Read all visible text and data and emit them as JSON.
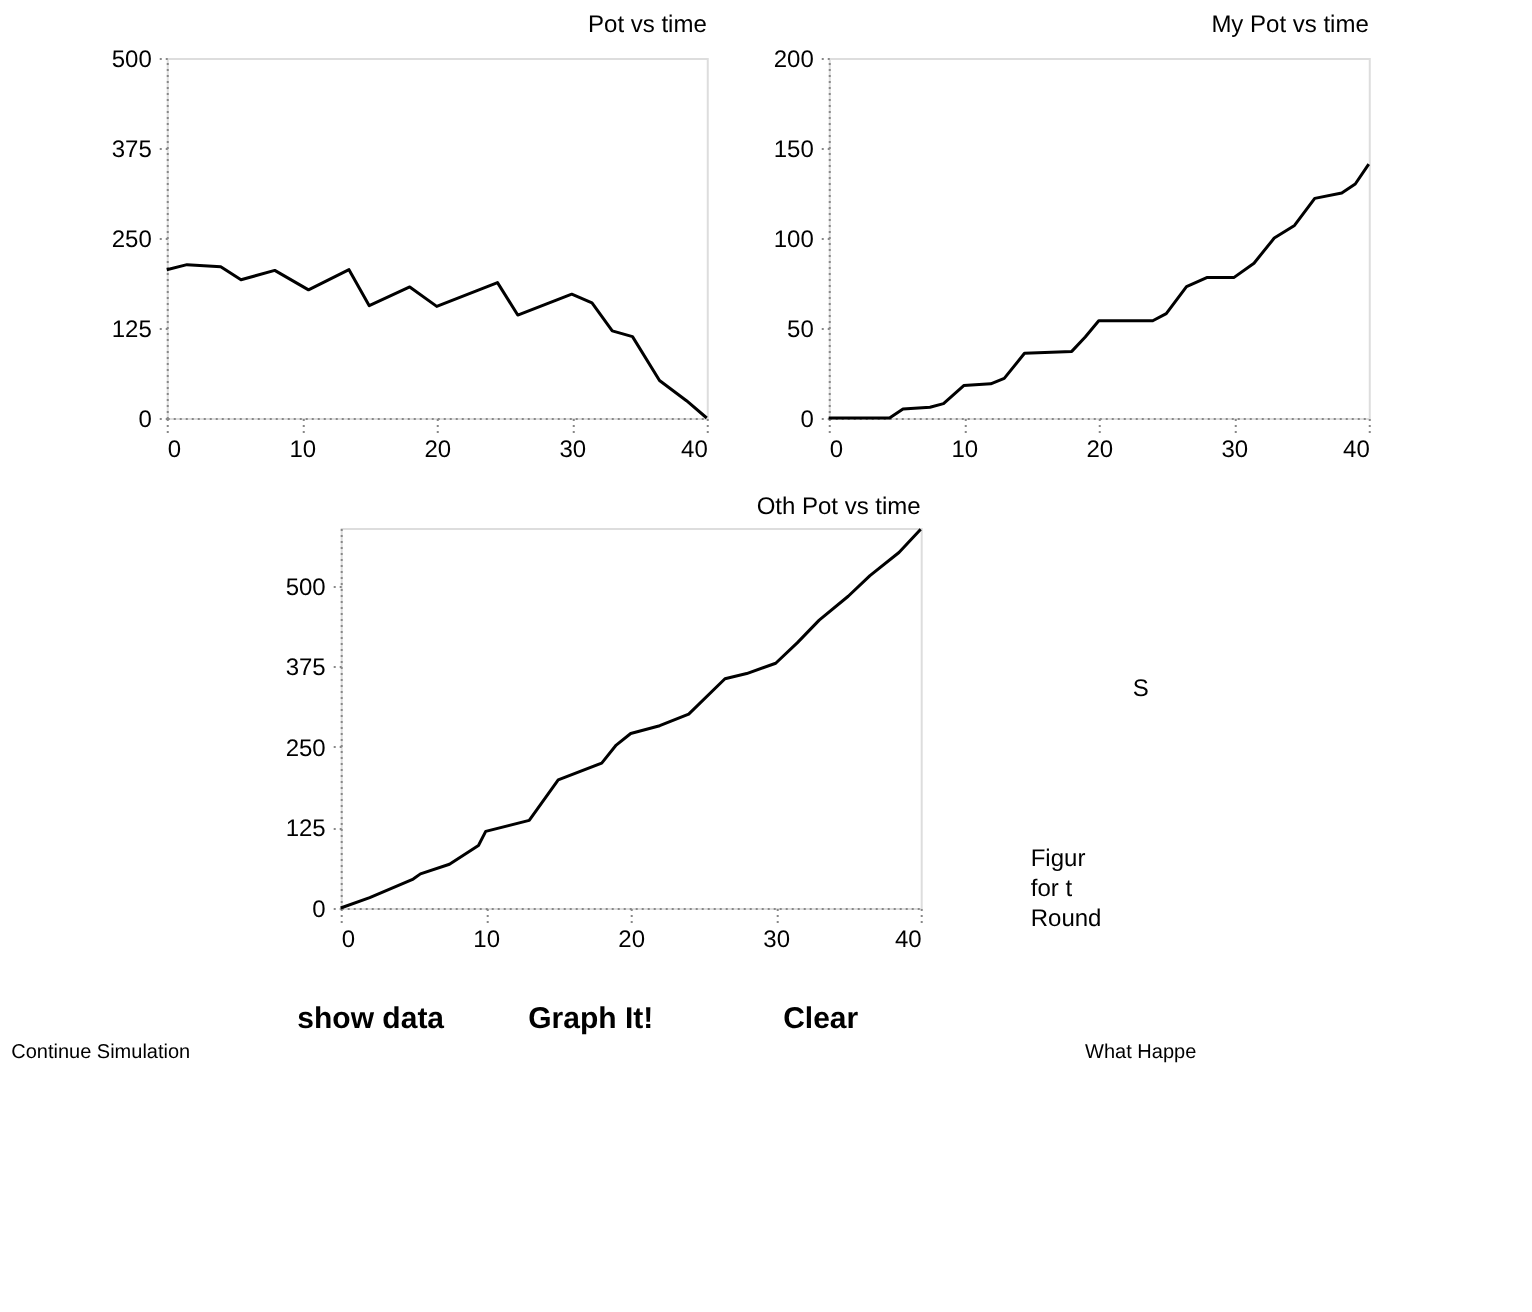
{
  "chart_data": [
    {
      "type": "line",
      "title": "Pot vs time",
      "x": [
        0,
        1.5,
        4,
        5.5,
        8,
        10.5,
        13.5,
        15,
        18,
        20,
        24.5,
        26,
        30,
        31.5,
        33,
        34.5,
        36.5,
        38.5,
        40
      ],
      "values": [
        206,
        213,
        210,
        192,
        205,
        178,
        206,
        156,
        182,
        155,
        188,
        143,
        172,
        160,
        121,
        113,
        52,
        24,
        0
      ],
      "color": "#000000",
      "xlim": [
        0,
        40
      ],
      "xticks": [
        0,
        10,
        20,
        30,
        40
      ],
      "ylim": [
        0,
        500
      ],
      "yticks": [
        0,
        125,
        250,
        375,
        500
      ],
      "grid": false,
      "line_style": "solid"
    },
    {
      "type": "line",
      "title": "My Pot vs time",
      "x": [
        0,
        4.5,
        5.5,
        7.5,
        8.5,
        10,
        12,
        13,
        14.5,
        18,
        19,
        20,
        24,
        25,
        26.5,
        28,
        30,
        31.5,
        33,
        34.5,
        36,
        38,
        39,
        40
      ],
      "values": [
        0,
        0,
        5,
        6,
        8,
        18,
        19,
        22,
        36,
        37,
        45,
        54,
        54,
        58,
        73,
        78,
        78,
        86,
        100,
        107,
        122,
        125,
        130,
        141
      ],
      "color": "#000000",
      "xlim": [
        0,
        40
      ],
      "xticks": [
        0,
        10,
        20,
        30,
        40
      ],
      "ylim": [
        0,
        200
      ],
      "yticks": [
        0,
        50,
        100,
        150,
        200
      ],
      "grid": false,
      "line_style": "solid"
    },
    {
      "type": "line",
      "title": "Oth Pot vs time",
      "x": [
        0,
        2,
        5,
        5.5,
        7.5,
        9.5,
        10,
        13,
        15,
        18,
        19,
        20,
        22,
        24,
        26.5,
        28,
        30,
        31.5,
        33,
        35,
        36.5,
        38.5,
        40
      ],
      "values": [
        0,
        16,
        45,
        53,
        68,
        97,
        119,
        136,
        199,
        225,
        253,
        271,
        283,
        301,
        356,
        364,
        380,
        412,
        447,
        484,
        516,
        552,
        588
      ],
      "color": "#000000",
      "xlim": [
        0,
        40
      ],
      "xticks": [
        0,
        10,
        20,
        30,
        40
      ],
      "ylim": [
        0,
        590
      ],
      "yticks": [
        0,
        125,
        250,
        375,
        500
      ],
      "grid": false,
      "line_style": "solid",
      "annotations": [
        "show data",
        "Graph It!",
        "Clear",
        "Continue Simulation",
        "What Happe",
        "S",
        "Figur",
        "for t",
        "Round"
      ]
    }
  ]
}
